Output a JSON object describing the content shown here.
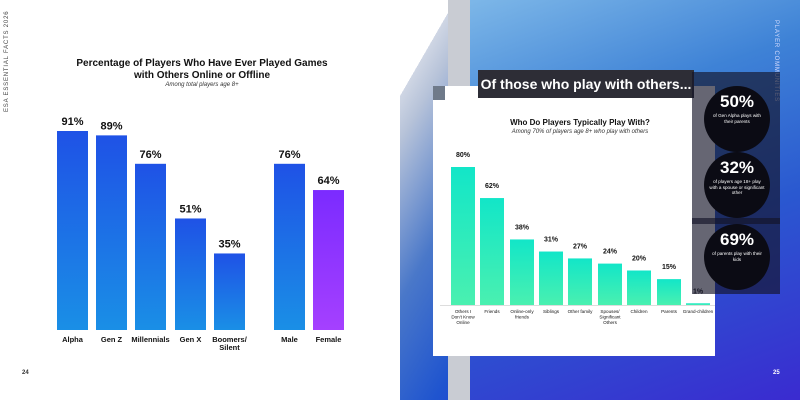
{
  "left_page": {
    "vertical_label": "ESA ESSENTIAL FACTS 2026",
    "page_number": "24"
  },
  "right_page": {
    "vertical_label": "PLAYER COMMUNITIES",
    "page_number": "25",
    "headline": "Of those who play with others...",
    "stats": [
      {
        "value": "50%",
        "text": "of Gen Alpha plays with their parents"
      },
      {
        "value": "32%",
        "text": "of players age 18+ play with a spouse or significant other"
      },
      {
        "value": "69%",
        "text": "of parents play with their kids"
      }
    ]
  },
  "colors": {
    "blue_bar_top": "#1f52e6",
    "blue_bar_bottom": "#1a8fe6",
    "female_bar_top": "#7b2bff",
    "female_bar_bottom": "#a540ff",
    "teal_bar_top": "#12e6c8",
    "teal_bar_bottom": "#4af0b0",
    "headline_bg": "#2d2d36"
  },
  "chart_data": [
    {
      "type": "bar",
      "title": "Percentage of Players Who Have Ever Played Games with Others Online or Offline",
      "subtitle": "Among total players age 8+",
      "categories": [
        "Alpha",
        "Gen Z",
        "Millennials",
        "Gen X",
        "Boomers/ Silent",
        "Male",
        "Female"
      ],
      "values": [
        91,
        89,
        76,
        51,
        35,
        76,
        64
      ],
      "value_labels": [
        "91%",
        "89%",
        "76%",
        "51%",
        "35%",
        "76%",
        "64%"
      ],
      "ylim": [
        0,
        100
      ],
      "grid": false,
      "xlabel": "",
      "ylabel": ""
    },
    {
      "type": "bar",
      "title": "Who Do Players Typically Play With?",
      "subtitle": "Among 70% of players age 8+ who play with others",
      "categories": [
        "Others I Don't Know Online",
        "Friends",
        "Online-only friends",
        "Siblings",
        "Other family",
        "Spouses/ Significant Others",
        "Children",
        "Parents",
        "Grand-children"
      ],
      "values": [
        80,
        62,
        38,
        31,
        27,
        24,
        20,
        15,
        1
      ],
      "value_labels": [
        "80%",
        "62%",
        "38%",
        "31%",
        "27%",
        "24%",
        "20%",
        "15%",
        "1%"
      ],
      "ylim": [
        0,
        100
      ],
      "grid": false,
      "xlabel": "",
      "ylabel": ""
    }
  ]
}
